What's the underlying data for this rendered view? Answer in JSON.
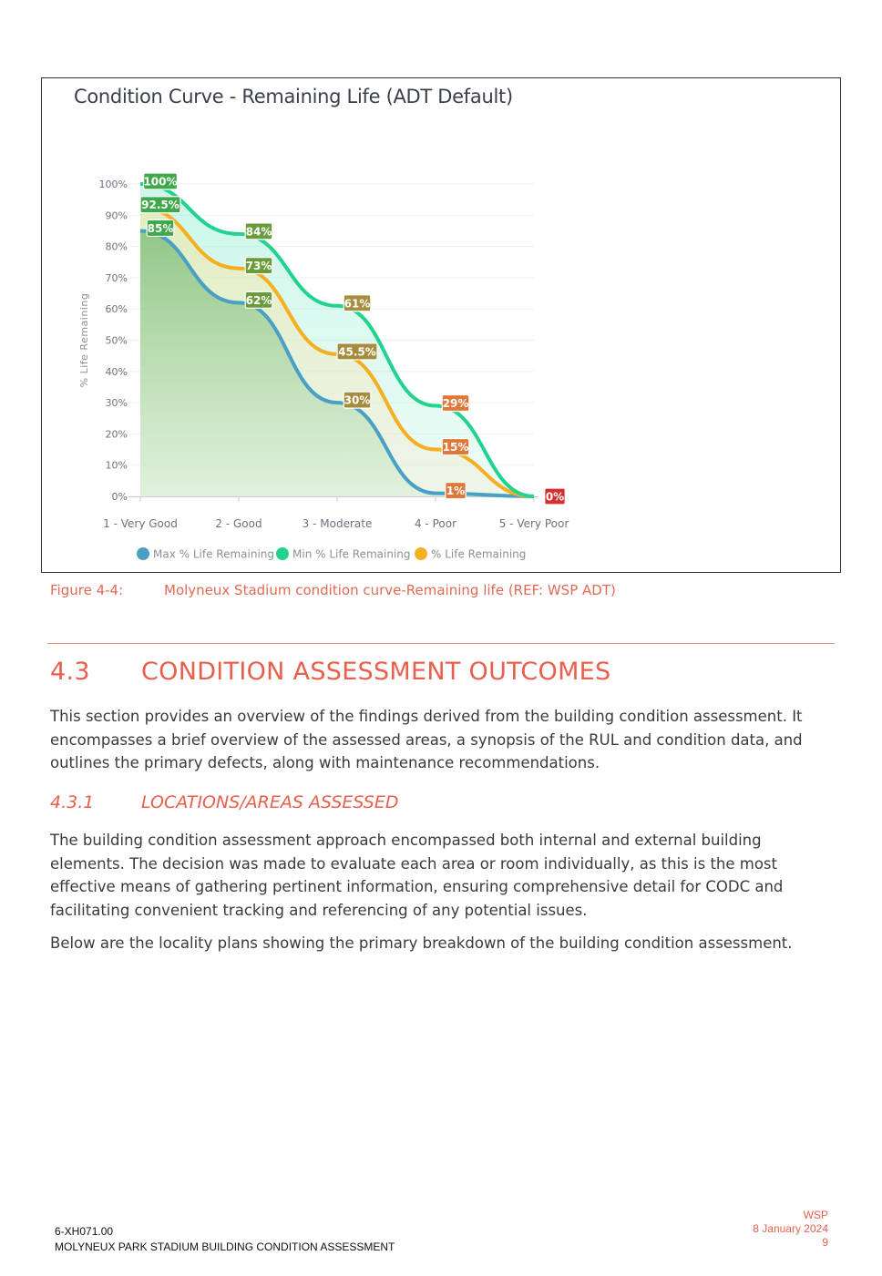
{
  "chart_data": {
    "type": "area",
    "title": "Condition Curve - Remaining Life (ADT Default)",
    "ylabel": "% Life Remaining",
    "xlabel": "",
    "categories": [
      "1 - Very Good",
      "2 - Good",
      "3 - Moderate",
      "4 - Poor",
      "5 - Very Poor"
    ],
    "yticks": [
      "0%",
      "10%",
      "20%",
      "30%",
      "40%",
      "50%",
      "60%",
      "70%",
      "80%",
      "90%",
      "100%"
    ],
    "ylim": [
      0,
      100
    ],
    "legend_position": "bottom",
    "series": [
      {
        "name": "Max % Life Remaining",
        "values": [
          85,
          62,
          30,
          1,
          0
        ],
        "labels": [
          "85%",
          "62%",
          "30%",
          "1%",
          "0%"
        ],
        "color": "#4a9fc4"
      },
      {
        "name": "Min % Life Remaining",
        "values": [
          100,
          84,
          61,
          29,
          0
        ],
        "labels": [
          "100%",
          "84%",
          "61%",
          "29%",
          "0%"
        ],
        "color": "#22d38f"
      },
      {
        "name": "% Life Remaining",
        "values": [
          92.5,
          73,
          45.5,
          15,
          0
        ],
        "labels": [
          "92.5%",
          "73%",
          "45.5%",
          "15%",
          "0%"
        ],
        "color": "#f6ae22"
      }
    ],
    "label_colors": [
      "#3fa84a",
      "#6a9c3c",
      "#a58d3d",
      "#e0783a",
      "#d32f2f"
    ]
  },
  "figure_caption": {
    "number": "Figure 4-4:",
    "text": "Molyneux Stadium condition curve-Remaining life (REF: WSP ADT)"
  },
  "section": {
    "number": "4.3",
    "title": "CONDITION ASSESSMENT OUTCOMES",
    "intro": "This section provides an overview of the findings derived from the building condition assessment. It encompasses a brief overview of the assessed areas, a synopsis of the RUL and condition data, and outlines the primary defects, along with maintenance recommendations."
  },
  "subsection": {
    "number": "4.3.1",
    "title": "LOCATIONS/AREAS ASSESSED",
    "para1": "The building condition assessment approach encompassed both internal and external building elements. The decision was made to evaluate each area or room individually, as this is the most effective means of gathering pertinent information, ensuring comprehensive detail for CODC and facilitating convenient tracking and referencing of any potential issues.",
    "para2": "Below are the locality plans showing the primary breakdown of the building condition assessment."
  },
  "footer": {
    "code": "6-XH071.00",
    "doc_title": "MOLYNEUX PARK STADIUM BUILDING CONDITION ASSESSMENT",
    "company": "WSP",
    "date": "8 January 2024",
    "page": "9"
  }
}
